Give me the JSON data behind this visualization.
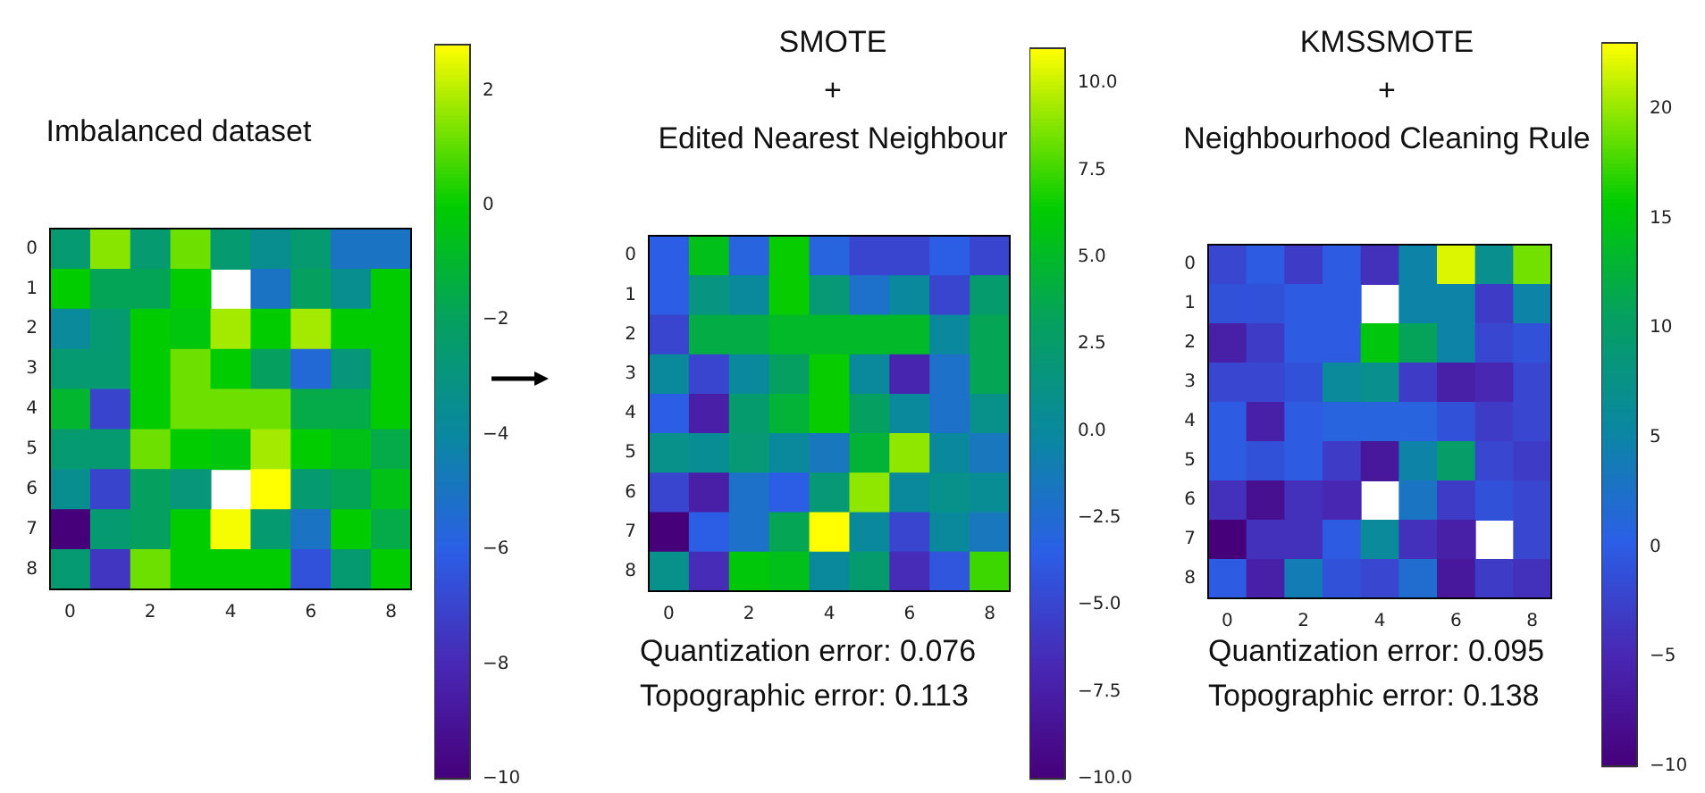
{
  "chart_data": [
    {
      "type": "heatmap",
      "title": "Imbalanced dataset",
      "categories": [
        "0",
        null,
        "2",
        null,
        "4",
        null,
        "6",
        null,
        "8"
      ],
      "y_categories": [
        "0",
        "1",
        "2",
        "3",
        "4",
        "5",
        "6",
        "7",
        "8"
      ],
      "clim": [
        -10,
        2.8
      ],
      "cticks": [
        {
          "value": -10,
          "label": "−10"
        },
        {
          "value": -8,
          "label": "−8"
        },
        {
          "value": -6,
          "label": "−6"
        },
        {
          "value": -4,
          "label": "−4"
        },
        {
          "value": -2,
          "label": "−2"
        },
        0,
        2
      ],
      "cells": [
        [
          -2.5,
          1.5,
          -2.5,
          1.2,
          -2.5,
          -3.5,
          -2.5,
          -5,
          -5
        ],
        [
          0,
          -1.8,
          -1.8,
          0,
          null,
          -5,
          -2,
          -3.5,
          0
        ],
        [
          -3.8,
          -2.5,
          0,
          -0.3,
          1.8,
          0,
          1.8,
          0,
          0
        ],
        [
          -2.5,
          -2.5,
          0,
          1.2,
          0,
          -2,
          -5.5,
          -2.8,
          0
        ],
        [
          -1,
          -7,
          0,
          1.2,
          1.2,
          1.2,
          -1.5,
          -1.5,
          0
        ],
        [
          -2.5,
          -2.5,
          1.2,
          0,
          -0.3,
          1.8,
          0,
          -0.5,
          -1.5
        ],
        [
          -3.5,
          -7,
          -2,
          -2.8,
          null,
          2.8,
          -2.5,
          -1.8,
          -0.5
        ],
        [
          -10,
          -2.5,
          -2,
          0,
          2.7,
          -2.5,
          -5,
          0,
          -1.5
        ],
        [
          -2.5,
          -7.5,
          1.2,
          0,
          0,
          0,
          -6.5,
          -2.5,
          0
        ]
      ]
    },
    {
      "type": "heatmap",
      "title": "SMOTE\n+\nEdited Nearest Neighbour",
      "annotations": [
        "Quantization error: 0.076",
        "Topographic error: 0.113"
      ],
      "categories": [
        "0",
        null,
        "2",
        null,
        "4",
        null,
        "6",
        null,
        "8"
      ],
      "y_categories": [
        "0",
        "1",
        "2",
        "3",
        "4",
        "5",
        "6",
        "7",
        "8"
      ],
      "clim": [
        -10,
        11
      ],
      "cticks": [
        {
          "value": -10,
          "label": "−10.0"
        },
        {
          "value": -7.5,
          "label": "−7.5"
        },
        {
          "value": -5,
          "label": "−5.0"
        },
        {
          "value": -2.5,
          "label": "−2.5"
        },
        {
          "value": 0,
          "label": "0.0"
        },
        2.5,
        {
          "value": 5,
          "label": "5.0"
        },
        7.5,
        {
          "value": 10,
          "label": "10.0"
        }
      ],
      "cells": [
        [
          -3.5,
          5.5,
          -3,
          6.5,
          -3,
          -5,
          -5,
          -3.5,
          -5
        ],
        [
          -3.5,
          1.5,
          0,
          6.5,
          2,
          -2,
          0,
          -5,
          2.5
        ],
        [
          -5,
          4,
          4,
          5,
          5,
          5,
          5,
          0,
          3.5
        ],
        [
          0,
          -5,
          0,
          3,
          6.5,
          0,
          -7,
          -2,
          3.5
        ],
        [
          -3.5,
          -7.5,
          2.5,
          4.5,
          6.5,
          3,
          0,
          -2,
          1
        ],
        [
          1,
          0.5,
          2,
          0,
          -1.5,
          4.5,
          9,
          0,
          -1.5
        ],
        [
          -5,
          -7.5,
          -2,
          -3.5,
          2,
          9,
          0,
          1,
          0.5
        ],
        [
          -10,
          -3.5,
          -2,
          3.5,
          11,
          0,
          -5,
          0,
          -1.5
        ],
        [
          1,
          -6.5,
          6,
          5.5,
          0,
          2.5,
          -6.5,
          -4,
          7.5
        ]
      ]
    },
    {
      "type": "heatmap",
      "title": "KMSSMOTE\n+\nNeighbourhood Cleaning Rule",
      "annotations": [
        "Quantization error: 0.095",
        "Topographic error: 0.138"
      ],
      "categories": [
        "0",
        null,
        "2",
        null,
        "4",
        null,
        "6",
        null,
        "8"
      ],
      "y_categories": [
        "0",
        "1",
        "2",
        "3",
        "4",
        "5",
        "6",
        "7",
        "8"
      ],
      "clim": [
        -10,
        23
      ],
      "cticks": [
        {
          "value": -10,
          "label": "−10"
        },
        {
          "value": -5,
          "label": "−5"
        },
        0,
        5,
        10,
        15,
        20
      ],
      "cells": [
        [
          -2,
          0,
          -3,
          0,
          -4,
          5,
          22,
          7,
          19
        ],
        [
          -1,
          -1,
          0,
          0,
          null,
          5,
          5,
          -3,
          5
        ],
        [
          -6,
          -3,
          0,
          0,
          15,
          11,
          5,
          -2,
          -1
        ],
        [
          -2,
          -2,
          -1,
          6,
          7,
          -3,
          -6,
          -5,
          -2
        ],
        [
          0,
          -6,
          0,
          1,
          1,
          1,
          -1,
          -3,
          -2
        ],
        [
          0,
          -1,
          0,
          -3,
          -7,
          5,
          10,
          -2,
          -3
        ],
        [
          -4,
          -8,
          -4,
          -5,
          null,
          3,
          -3,
          -1,
          -2
        ],
        [
          -10,
          -4,
          -4,
          0,
          6,
          -4,
          -6,
          null,
          -2
        ],
        [
          0,
          -6,
          4,
          -1,
          -2,
          2,
          -7,
          -3,
          -4
        ]
      ]
    }
  ]
}
